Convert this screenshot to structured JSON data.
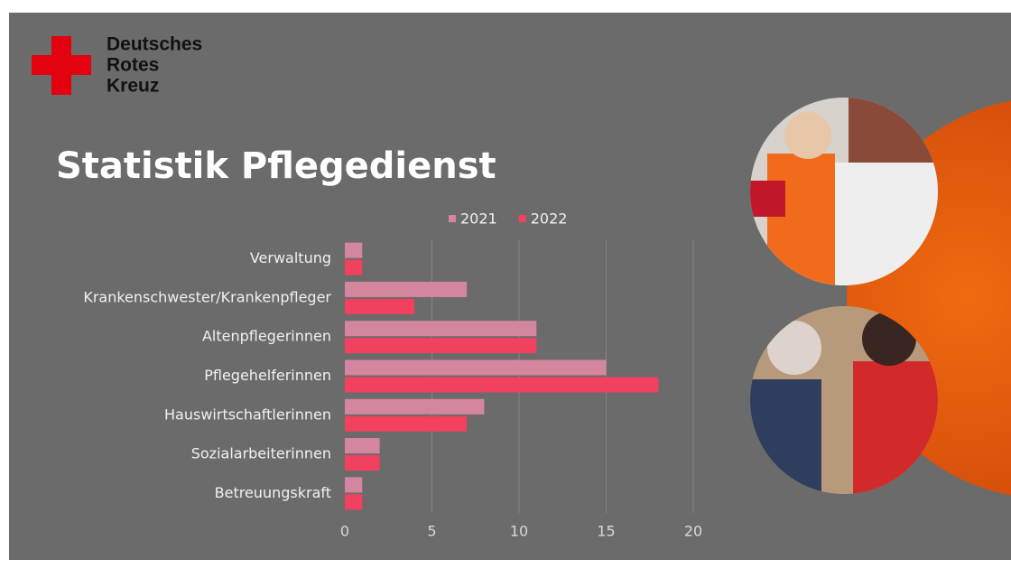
{
  "brand": [
    "Deutsches",
    "Rotes",
    "Kreuz"
  ],
  "chart_data": {
    "type": "bar",
    "orientation": "horizontal",
    "title": "Statistik Pflegedienst",
    "categories": [
      "Verwaltung",
      "Krankenschwester/Krankenpfleger",
      "Altenpflegerinnen",
      "Pflegehelferinnen",
      "Hauswirtschaftlerinnen",
      "Sozialarbeiterinnen",
      "Betreuungskraft"
    ],
    "series": [
      {
        "name": "2021",
        "color": "#d5869f",
        "values": [
          1,
          7,
          11,
          15,
          8,
          2,
          1
        ]
      },
      {
        "name": "2022",
        "color": "#f2405f",
        "values": [
          1,
          4,
          11,
          18,
          7,
          2,
          1
        ]
      }
    ],
    "xlim": [
      0,
      20
    ],
    "xticks": [
      0,
      5,
      10,
      15,
      20
    ],
    "grid": true,
    "legend": "top"
  }
}
